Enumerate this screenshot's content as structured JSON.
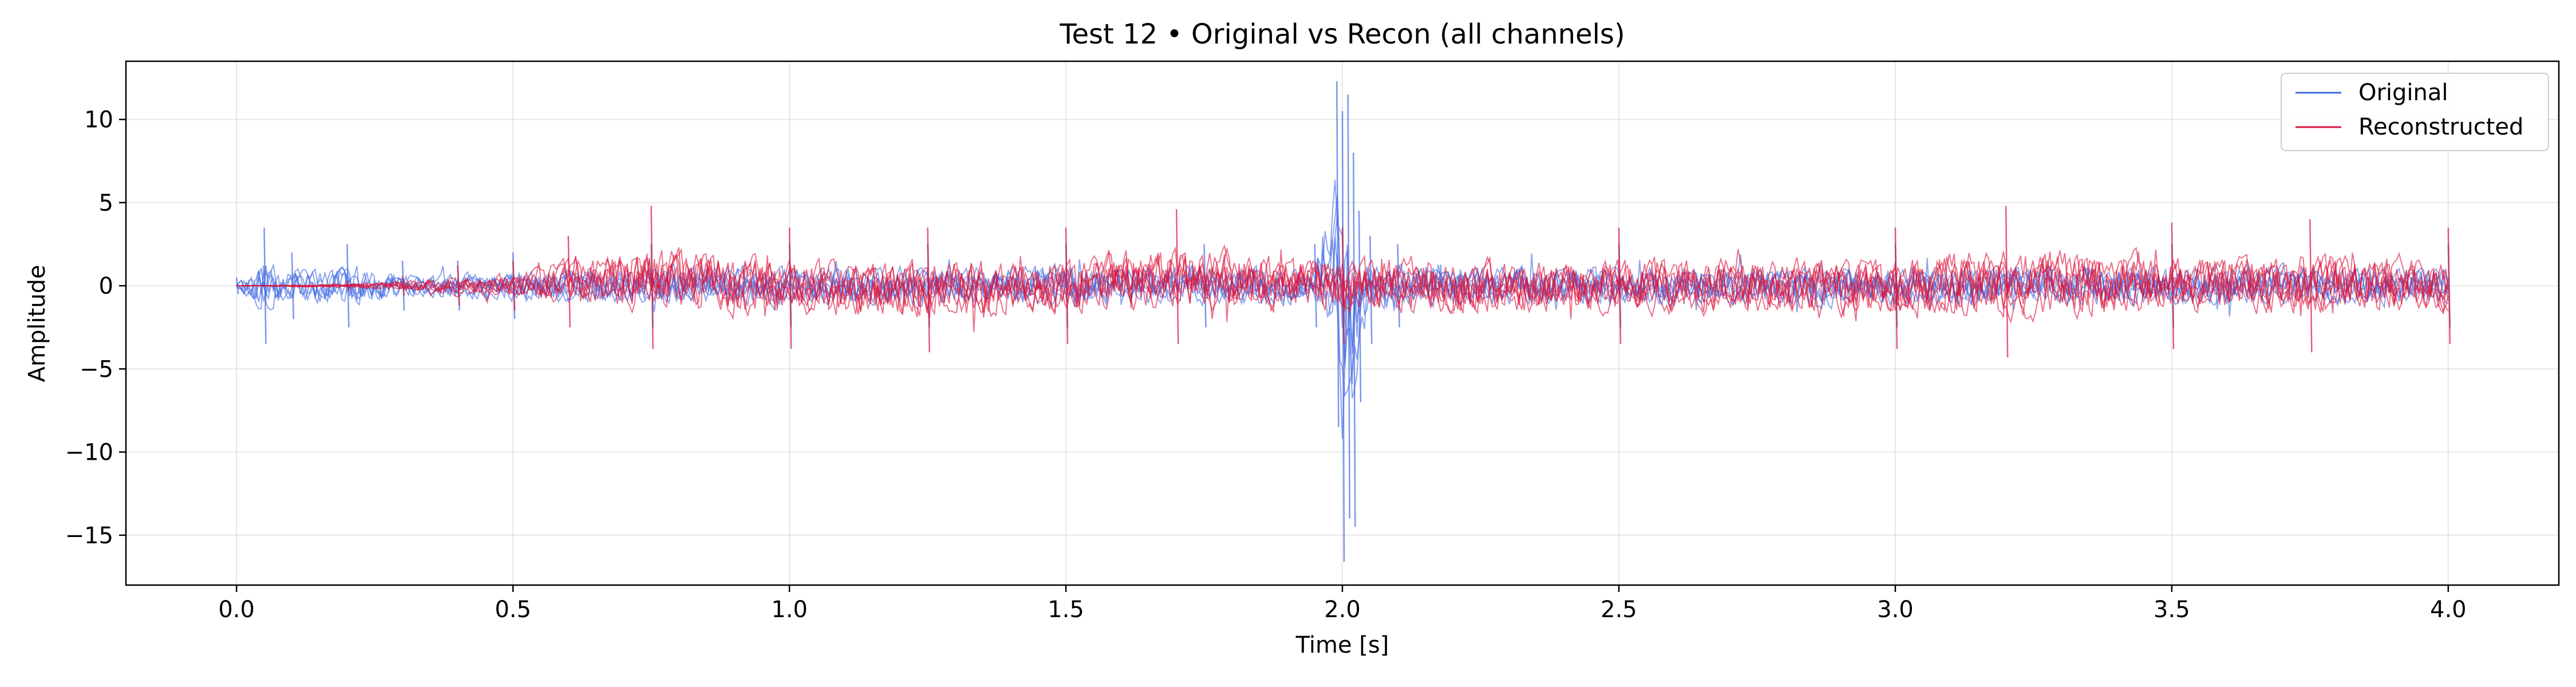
{
  "chart_data": {
    "type": "line",
    "title": "Test 12 • Original vs Recon (all channels)",
    "xlabel": "Time [s]",
    "ylabel": "Amplitude",
    "xlim": [
      -0.2,
      4.2
    ],
    "ylim": [
      -18,
      13.5
    ],
    "x_ticks": [
      0.0,
      0.5,
      1.0,
      1.5,
      2.0,
      2.5,
      3.0,
      3.5,
      4.0
    ],
    "x_tick_labels": [
      "0.0",
      "0.5",
      "1.0",
      "1.5",
      "2.0",
      "2.5",
      "3.0",
      "3.5",
      "4.0"
    ],
    "y_ticks": [
      -15,
      -10,
      -5,
      0,
      5,
      10
    ],
    "y_tick_labels": [
      "−15",
      "−10",
      "−5",
      "0",
      "5",
      "10"
    ],
    "grid": true,
    "legend_position": "top-right",
    "series": [
      {
        "name": "Original",
        "color": "#4169e1",
        "x": [
          0.0,
          0.05,
          0.1,
          0.2,
          0.3,
          0.4,
          0.5,
          0.75,
          1.0,
          1.25,
          1.5,
          1.75,
          1.95,
          1.99,
          2.0,
          2.01,
          2.02,
          2.03,
          2.05,
          2.1,
          2.5,
          3.0,
          3.5,
          4.0
        ],
        "y_max": [
          0.5,
          3.5,
          2.0,
          2.5,
          1.5,
          1.5,
          2.0,
          2.5,
          2.5,
          2.5,
          2.5,
          2.5,
          2.5,
          12.3,
          10.5,
          11.5,
          8.0,
          4.5,
          3.0,
          2.5,
          2.5,
          2.5,
          2.5,
          2.5
        ],
        "y_min": [
          -0.5,
          -3.5,
          -2.0,
          -2.5,
          -1.5,
          -1.5,
          -2.0,
          -2.5,
          -2.5,
          -2.5,
          -2.5,
          -2.5,
          -2.5,
          -8.5,
          -16.6,
          -14.0,
          -14.5,
          -7.0,
          -3.5,
          -2.5,
          -2.5,
          -2.5,
          -2.5,
          -2.5
        ]
      },
      {
        "name": "Reconstructed",
        "color": "#dc143c",
        "x": [
          0.0,
          0.1,
          0.2,
          0.3,
          0.4,
          0.5,
          0.6,
          0.75,
          1.0,
          1.25,
          1.5,
          1.7,
          2.0,
          2.5,
          3.0,
          3.2,
          3.5,
          3.75,
          4.0
        ],
        "y_max": [
          0.0,
          0.1,
          0.3,
          0.6,
          1.2,
          1.5,
          3.0,
          4.8,
          3.5,
          3.5,
          3.5,
          4.6,
          3.5,
          3.5,
          3.5,
          4.8,
          3.8,
          4.0,
          3.5
        ],
        "y_min": [
          0.0,
          -0.1,
          -0.3,
          -0.6,
          -1.2,
          -1.5,
          -2.5,
          -3.8,
          -3.8,
          -4.0,
          -3.5,
          -3.5,
          -3.5,
          -3.5,
          -3.8,
          -4.3,
          -3.8,
          -4.0,
          -3.5
        ]
      }
    ]
  }
}
